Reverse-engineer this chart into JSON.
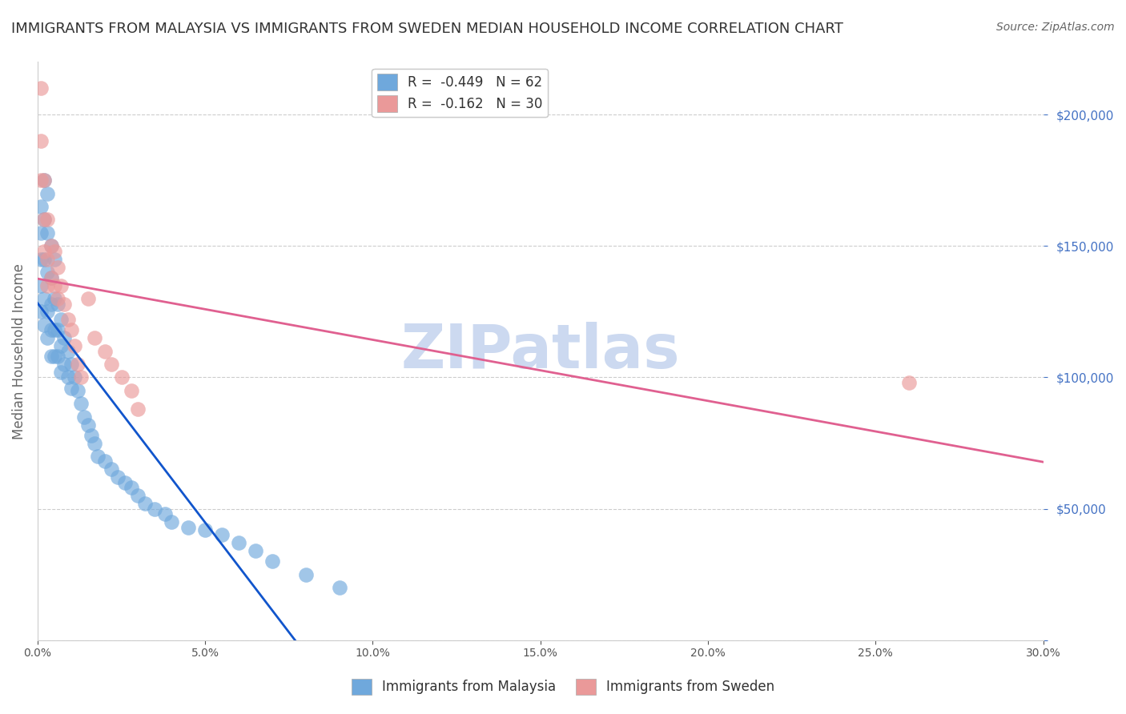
{
  "title": "IMMIGRANTS FROM MALAYSIA VS IMMIGRANTS FROM SWEDEN MEDIAN HOUSEHOLD INCOME CORRELATION CHART",
  "source": "Source: ZipAtlas.com",
  "ylabel": "Median Household Income",
  "watermark": "ZIPatlas",
  "xlim": [
    0.0,
    0.3
  ],
  "ylim": [
    0,
    220000
  ],
  "malaysia_color": "#6fa8dc",
  "sweden_color": "#ea9999",
  "malaysia_line_color": "#1155cc",
  "sweden_line_color": "#e06090",
  "legend_label_1": "R =  -0.449   N = 62",
  "legend_label_2": "R =  -0.162   N = 30",
  "legend_label_bottom_1": "Immigrants from Malaysia",
  "legend_label_bottom_2": "Immigrants from Sweden",
  "malaysia_x": [
    0.001,
    0.001,
    0.001,
    0.001,
    0.001,
    0.002,
    0.002,
    0.002,
    0.002,
    0.002,
    0.003,
    0.003,
    0.003,
    0.003,
    0.003,
    0.004,
    0.004,
    0.004,
    0.004,
    0.004,
    0.005,
    0.005,
    0.005,
    0.005,
    0.006,
    0.006,
    0.006,
    0.007,
    0.007,
    0.007,
    0.008,
    0.008,
    0.009,
    0.009,
    0.01,
    0.01,
    0.011,
    0.012,
    0.013,
    0.014,
    0.015,
    0.016,
    0.017,
    0.018,
    0.02,
    0.022,
    0.024,
    0.026,
    0.028,
    0.03,
    0.032,
    0.035,
    0.038,
    0.04,
    0.045,
    0.05,
    0.055,
    0.06,
    0.065,
    0.07,
    0.08,
    0.09
  ],
  "malaysia_y": [
    165000,
    155000,
    145000,
    135000,
    125000,
    175000,
    160000,
    145000,
    130000,
    120000,
    170000,
    155000,
    140000,
    125000,
    115000,
    150000,
    138000,
    128000,
    118000,
    108000,
    145000,
    130000,
    118000,
    108000,
    128000,
    118000,
    108000,
    122000,
    112000,
    102000,
    115000,
    105000,
    110000,
    100000,
    105000,
    96000,
    100000,
    95000,
    90000,
    85000,
    82000,
    78000,
    75000,
    70000,
    68000,
    65000,
    62000,
    60000,
    58000,
    55000,
    52000,
    50000,
    48000,
    45000,
    43000,
    42000,
    40000,
    37000,
    34000,
    30000,
    25000,
    20000
  ],
  "sweden_x": [
    0.001,
    0.001,
    0.001,
    0.002,
    0.002,
    0.002,
    0.003,
    0.003,
    0.003,
    0.004,
    0.004,
    0.005,
    0.005,
    0.006,
    0.006,
    0.007,
    0.008,
    0.009,
    0.01,
    0.011,
    0.012,
    0.013,
    0.015,
    0.017,
    0.02,
    0.022,
    0.025,
    0.028,
    0.26,
    0.03
  ],
  "sweden_y": [
    210000,
    190000,
    175000,
    175000,
    160000,
    148000,
    160000,
    145000,
    135000,
    150000,
    138000,
    148000,
    135000,
    142000,
    130000,
    135000,
    128000,
    122000,
    118000,
    112000,
    105000,
    100000,
    130000,
    115000,
    110000,
    105000,
    100000,
    95000,
    98000,
    88000
  ],
  "background_color": "#ffffff",
  "grid_color": "#cccccc",
  "title_color": "#333333",
  "axis_label_color": "#666666",
  "watermark_color": "#ccd9f0",
  "watermark_fontsize": 55,
  "title_fontsize": 13,
  "source_fontsize": 10
}
